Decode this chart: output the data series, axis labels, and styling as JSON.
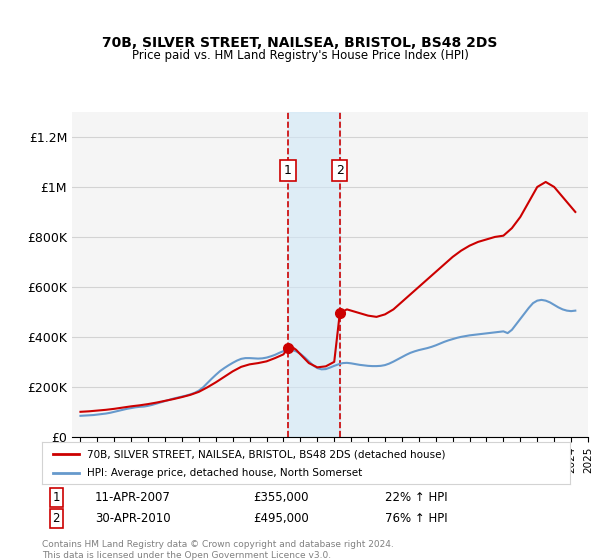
{
  "title": "70B, SILVER STREET, NAILSEA, BRISTOL, BS48 2DS",
  "subtitle": "Price paid vs. HM Land Registry's House Price Index (HPI)",
  "xlabel": "",
  "ylabel": "",
  "ylim": [
    0,
    1300000
  ],
  "yticks": [
    0,
    200000,
    400000,
    600000,
    800000,
    1000000,
    1200000
  ],
  "ytick_labels": [
    "£0",
    "£200K",
    "£400K",
    "£600K",
    "£800K",
    "£1M",
    "£1.2M"
  ],
  "background_color": "#ffffff",
  "plot_bg_color": "#f5f5f5",
  "sale1_date_num": 2007.27,
  "sale1_label": "1",
  "sale1_price": 355000,
  "sale1_text": "11-APR-2007",
  "sale1_pct": "22%",
  "sale2_date_num": 2010.33,
  "sale2_label": "2",
  "sale2_price": 495000,
  "sale2_text": "30-APR-2010",
  "sale2_pct": "76%",
  "shade_color": "#d0e8f8",
  "vline_color": "#cc0000",
  "legend_line1": "70B, SILVER STREET, NAILSEA, BRISTOL, BS48 2DS (detached house)",
  "legend_line2": "HPI: Average price, detached house, North Somerset",
  "footnote": "Contains HM Land Registry data © Crown copyright and database right 2024.\nThis data is licensed under the Open Government Licence v3.0.",
  "hpi_color": "#6699cc",
  "price_color": "#cc0000",
  "hpi_data": {
    "years": [
      1995.0,
      1995.25,
      1995.5,
      1995.75,
      1996.0,
      1996.25,
      1996.5,
      1996.75,
      1997.0,
      1997.25,
      1997.5,
      1997.75,
      1998.0,
      1998.25,
      1998.5,
      1998.75,
      1999.0,
      1999.25,
      1999.5,
      1999.75,
      2000.0,
      2000.25,
      2000.5,
      2000.75,
      2001.0,
      2001.25,
      2001.5,
      2001.75,
      2002.0,
      2002.25,
      2002.5,
      2002.75,
      2003.0,
      2003.25,
      2003.5,
      2003.75,
      2004.0,
      2004.25,
      2004.5,
      2004.75,
      2005.0,
      2005.25,
      2005.5,
      2005.75,
      2006.0,
      2006.25,
      2006.5,
      2006.75,
      2007.0,
      2007.25,
      2007.5,
      2007.75,
      2008.0,
      2008.25,
      2008.5,
      2008.75,
      2009.0,
      2009.25,
      2009.5,
      2009.75,
      2010.0,
      2010.25,
      2010.5,
      2010.75,
      2011.0,
      2011.25,
      2011.5,
      2011.75,
      2012.0,
      2012.25,
      2012.5,
      2012.75,
      2013.0,
      2013.25,
      2013.5,
      2013.75,
      2014.0,
      2014.25,
      2014.5,
      2014.75,
      2015.0,
      2015.25,
      2015.5,
      2015.75,
      2016.0,
      2016.25,
      2016.5,
      2016.75,
      2017.0,
      2017.25,
      2017.5,
      2017.75,
      2018.0,
      2018.25,
      2018.5,
      2018.75,
      2019.0,
      2019.25,
      2019.5,
      2019.75,
      2020.0,
      2020.25,
      2020.5,
      2020.75,
      2021.0,
      2021.25,
      2021.5,
      2021.75,
      2022.0,
      2022.25,
      2022.5,
      2022.75,
      2023.0,
      2023.25,
      2023.5,
      2023.75,
      2024.0,
      2024.25
    ],
    "values": [
      84000,
      85000,
      86000,
      87000,
      89000,
      91000,
      93000,
      96000,
      100000,
      104000,
      108000,
      112000,
      115000,
      118000,
      120000,
      121000,
      124000,
      128000,
      133000,
      138000,
      143000,
      148000,
      153000,
      157000,
      161000,
      165000,
      170000,
      176000,
      185000,
      198000,
      215000,
      232000,
      248000,
      263000,
      275000,
      286000,
      296000,
      305000,
      312000,
      315000,
      315000,
      314000,
      313000,
      314000,
      317000,
      322000,
      328000,
      336000,
      343000,
      348000,
      348000,
      342000,
      332000,
      318000,
      302000,
      286000,
      275000,
      270000,
      271000,
      277000,
      284000,
      290000,
      295000,
      296000,
      294000,
      291000,
      288000,
      286000,
      284000,
      283000,
      283000,
      284000,
      287000,
      293000,
      301000,
      310000,
      319000,
      328000,
      336000,
      342000,
      347000,
      351000,
      355000,
      360000,
      366000,
      373000,
      380000,
      386000,
      391000,
      396000,
      400000,
      403000,
      406000,
      408000,
      410000,
      412000,
      414000,
      416000,
      418000,
      420000,
      422000,
      415000,
      428000,
      450000,
      472000,
      494000,
      516000,
      535000,
      545000,
      548000,
      545000,
      538000,
      528000,
      518000,
      510000,
      505000,
      503000,
      505000
    ]
  },
  "price_data": {
    "years": [
      1995.0,
      1995.5,
      1996.0,
      1996.5,
      1997.0,
      1997.5,
      1998.0,
      1998.5,
      1999.0,
      1999.5,
      2000.0,
      2000.5,
      2001.0,
      2001.5,
      2002.0,
      2002.5,
      2003.0,
      2003.5,
      2004.0,
      2004.5,
      2005.0,
      2005.5,
      2006.0,
      2006.5,
      2007.0,
      2007.25,
      2007.5,
      2007.75,
      2008.0,
      2008.5,
      2009.0,
      2009.5,
      2010.0,
      2010.33,
      2010.75,
      2011.0,
      2011.5,
      2012.0,
      2012.5,
      2013.0,
      2013.5,
      2014.0,
      2014.5,
      2015.0,
      2015.5,
      2016.0,
      2016.5,
      2017.0,
      2017.5,
      2018.0,
      2018.5,
      2019.0,
      2019.5,
      2020.0,
      2020.5,
      2021.0,
      2021.5,
      2022.0,
      2022.5,
      2023.0,
      2023.5,
      2024.0,
      2024.25
    ],
    "values": [
      100000,
      102000,
      105000,
      108000,
      112000,
      117000,
      122000,
      126000,
      131000,
      137000,
      144000,
      151000,
      159000,
      168000,
      180000,
      198000,
      218000,
      240000,
      262000,
      280000,
      290000,
      295000,
      302000,
      315000,
      330000,
      355000,
      360000,
      348000,
      330000,
      295000,
      278000,
      282000,
      300000,
      495000,
      510000,
      505000,
      495000,
      485000,
      480000,
      490000,
      510000,
      540000,
      570000,
      600000,
      630000,
      660000,
      690000,
      720000,
      745000,
      765000,
      780000,
      790000,
      800000,
      805000,
      835000,
      880000,
      940000,
      1000000,
      1020000,
      1000000,
      960000,
      920000,
      900000
    ]
  }
}
